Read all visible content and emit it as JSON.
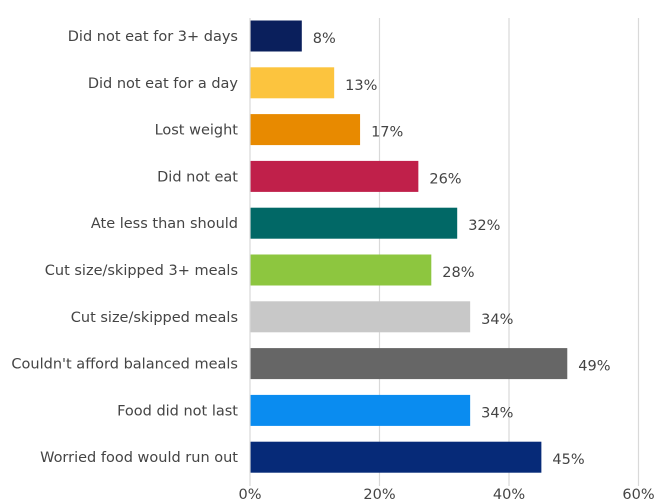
{
  "chart_data": {
    "type": "bar",
    "orientation": "horizontal",
    "categories": [
      "Did not eat for 3+ days",
      "Did not eat for a day",
      "Lost weight",
      "Did not eat",
      "Ate less than should",
      "Cut size/skipped 3+ meals",
      "Cut size/skipped meals",
      "Couldn't afford balanced meals",
      "Food did not last",
      "Worried food would run out"
    ],
    "values": [
      8,
      13,
      17,
      26,
      32,
      28,
      34,
      49,
      34,
      45
    ],
    "value_labels": [
      "8%",
      "13%",
      "17%",
      "26%",
      "32%",
      "28%",
      "34%",
      "49%",
      "34%",
      "45%"
    ],
    "colors": [
      "#0a1f5c",
      "#fcc43e",
      "#e88a00",
      "#c0204a",
      "#016866",
      "#8dc63f",
      "#c8c8c8",
      "#666666",
      "#0a8cf0",
      "#062a78"
    ],
    "xlim": [
      0,
      60
    ],
    "xticks": [
      0,
      20,
      40,
      60
    ],
    "xtick_labels": [
      "0%",
      "20%",
      "40%",
      "60%"
    ],
    "grid": "vertical",
    "legend": "none"
  }
}
